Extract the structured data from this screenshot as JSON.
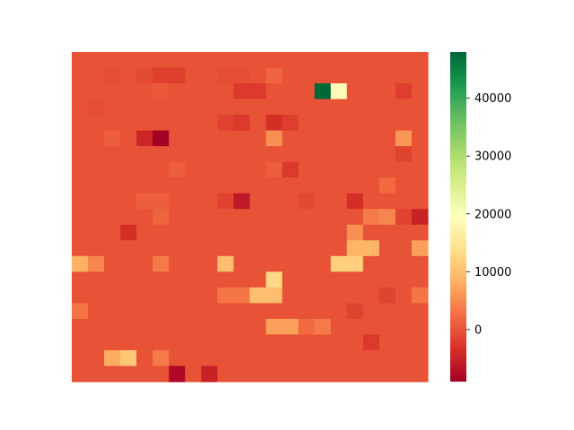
{
  "chart_data": {
    "type": "heatmap",
    "title": "",
    "xlabel": "",
    "ylabel": "",
    "rows": 21,
    "cols": 22,
    "colormap": "RdYlGn",
    "colormap_stops": [
      "#a50026",
      "#d73027",
      "#f46d43",
      "#fdae61",
      "#fee08b",
      "#ffffbf",
      "#d9ef8b",
      "#a6d96a",
      "#66bd63",
      "#1a9850",
      "#006837"
    ],
    "vmin": -9000,
    "vmax": 48000,
    "colorbar_ticks": [
      0,
      10000,
      20000,
      30000,
      40000
    ],
    "colorbar_tick_labels": [
      "0",
      "10000",
      "20000",
      "30000",
      "40000"
    ],
    "values": [
      [
        0,
        0,
        0,
        0,
        0,
        0,
        0,
        0,
        0,
        0,
        0,
        0,
        0,
        0,
        0,
        0,
        0,
        0,
        0,
        0,
        0,
        0
      ],
      [
        0,
        0,
        -500,
        0,
        -800,
        -1800,
        -1800,
        0,
        0,
        -500,
        -500,
        0,
        1500,
        0,
        0,
        0,
        0,
        0,
        0,
        0,
        0,
        0
      ],
      [
        0,
        0,
        0,
        0,
        0,
        500,
        0,
        0,
        0,
        0,
        -2500,
        -2500,
        0,
        0,
        0,
        48000,
        19000,
        0,
        0,
        0,
        -2000,
        0
      ],
      [
        0,
        -500,
        0,
        0,
        0,
        0,
        0,
        0,
        0,
        0,
        0,
        0,
        0,
        0,
        0,
        0,
        0,
        0,
        0,
        0,
        0,
        0
      ],
      [
        0,
        0,
        0,
        0,
        0,
        0,
        0,
        0,
        0,
        -1500,
        -2500,
        0,
        -3500,
        -2000,
        0,
        0,
        0,
        0,
        0,
        0,
        0,
        0
      ],
      [
        0,
        0,
        1000,
        0,
        -4500,
        -9000,
        0,
        0,
        0,
        0,
        0,
        0,
        5500,
        0,
        0,
        0,
        0,
        0,
        0,
        0,
        6000,
        0
      ],
      [
        0,
        0,
        0,
        0,
        0,
        0,
        0,
        0,
        0,
        0,
        0,
        0,
        0,
        0,
        0,
        0,
        0,
        0,
        0,
        0,
        -1500,
        0
      ],
      [
        0,
        0,
        0,
        0,
        0,
        0,
        1000,
        0,
        0,
        0,
        0,
        0,
        1000,
        -2500,
        0,
        0,
        0,
        0,
        0,
        0,
        0,
        0
      ],
      [
        0,
        0,
        0,
        0,
        0,
        0,
        0,
        0,
        0,
        0,
        0,
        0,
        0,
        0,
        0,
        0,
        0,
        0,
        0,
        2000,
        0,
        0
      ],
      [
        0,
        0,
        0,
        0,
        1000,
        1000,
        0,
        0,
        0,
        -1500,
        -6000,
        0,
        0,
        0,
        -1000,
        0,
        0,
        -3500,
        0,
        0,
        0,
        0
      ],
      [
        0,
        0,
        0,
        0,
        0,
        1500,
        0,
        0,
        0,
        0,
        0,
        0,
        0,
        0,
        0,
        0,
        0,
        0,
        3500,
        4500,
        -1500,
        -5000
      ],
      [
        0,
        0,
        0,
        -3500,
        0,
        0,
        0,
        0,
        0,
        0,
        0,
        0,
        0,
        0,
        0,
        0,
        0,
        5500,
        0,
        0,
        0,
        0
      ],
      [
        0,
        0,
        0,
        0,
        0,
        0,
        0,
        0,
        0,
        0,
        0,
        0,
        0,
        0,
        0,
        0,
        0,
        9000,
        9000,
        0,
        0,
        7000
      ],
      [
        8500,
        4500,
        0,
        0,
        0,
        3500,
        0,
        0,
        0,
        10000,
        0,
        0,
        0,
        0,
        0,
        0,
        12000,
        12000,
        0,
        0,
        0,
        0
      ],
      [
        0,
        0,
        0,
        0,
        0,
        0,
        0,
        0,
        0,
        0,
        0,
        0,
        13000,
        0,
        0,
        0,
        0,
        0,
        0,
        0,
        0,
        0
      ],
      [
        0,
        0,
        0,
        0,
        0,
        0,
        0,
        0,
        0,
        3000,
        3000,
        10000,
        10000,
        0,
        0,
        0,
        0,
        0,
        0,
        -1500,
        0,
        3000
      ],
      [
        3000,
        0,
        0,
        0,
        0,
        0,
        0,
        0,
        0,
        0,
        0,
        0,
        0,
        0,
        0,
        0,
        0,
        -1500,
        0,
        0,
        0,
        0
      ],
      [
        0,
        0,
        0,
        0,
        0,
        0,
        0,
        0,
        0,
        0,
        0,
        0,
        7000,
        7000,
        2000,
        3500,
        0,
        0,
        0,
        0,
        0,
        0
      ],
      [
        0,
        0,
        0,
        0,
        0,
        0,
        0,
        0,
        0,
        0,
        0,
        0,
        0,
        0,
        0,
        0,
        0,
        0,
        -2500,
        0,
        0,
        0
      ],
      [
        0,
        0,
        8000,
        11000,
        0,
        3500,
        0,
        0,
        0,
        0,
        0,
        0,
        0,
        0,
        0,
        0,
        0,
        0,
        0,
        0,
        0,
        0
      ],
      [
        0,
        0,
        0,
        0,
        0,
        0,
        -8000,
        0,
        -5000,
        0,
        0,
        0,
        0,
        0,
        0,
        0,
        0,
        0,
        0,
        0,
        0,
        0
      ]
    ]
  }
}
